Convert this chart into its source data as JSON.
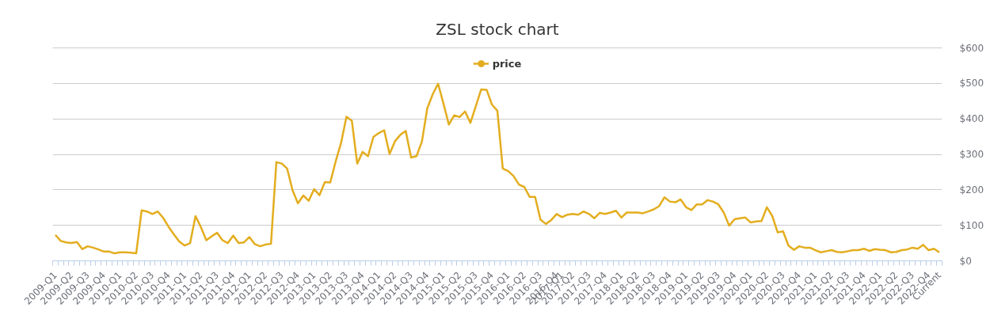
{
  "chart_data": {
    "type": "line",
    "title": "ZSL stock chart",
    "categories": [
      "2009-Q1",
      null,
      null,
      "2009-Q2",
      null,
      null,
      "2009-Q3",
      null,
      null,
      "2009-Q4",
      null,
      null,
      "2010-Q1",
      null,
      null,
      "2010-Q2",
      null,
      null,
      "2010-Q3",
      null,
      null,
      "2010-Q4",
      null,
      null,
      "2011-Q1",
      null,
      null,
      "2011-Q2",
      null,
      null,
      "2011-Q3",
      null,
      null,
      "2011-Q4",
      null,
      null,
      "2012-Q1",
      null,
      null,
      "2012-Q2",
      null,
      null,
      "2012-Q3",
      null,
      null,
      "2012-Q4",
      null,
      null,
      "2013-Q1",
      null,
      null,
      "2013-Q2",
      null,
      null,
      "2013-Q3",
      null,
      null,
      "2013-Q4",
      null,
      null,
      "2014-Q1",
      null,
      null,
      "2014-Q2",
      null,
      null,
      "2014-Q3",
      null,
      null,
      "2014-Q4",
      null,
      null,
      "2015-Q1",
      null,
      null,
      "2015-Q2",
      null,
      null,
      "2015-Q3",
      null,
      null,
      "2015-Q4",
      null,
      null,
      "2016-Q1",
      null,
      null,
      "2016-Q2",
      null,
      null,
      "2016-Q3",
      null,
      null,
      "2016-Q4",
      "2017-Q1",
      null,
      "2017-Q2",
      null,
      null,
      "2017-Q3",
      null,
      null,
      "2017-Q4",
      null,
      null,
      "2018-Q1",
      null,
      null,
      "2018-Q2",
      null,
      null,
      "2018-Q3",
      null,
      null,
      "2018-Q4",
      null,
      null,
      "2019-Q1",
      null,
      null,
      "2019-Q2",
      null,
      null,
      "2019-Q3",
      null,
      null,
      "2019-Q4",
      null,
      null,
      "2020-Q1",
      null,
      null,
      "2020-Q2",
      null,
      null,
      "2020-Q3",
      null,
      null,
      "2020-Q4",
      null,
      null,
      "2021-Q1",
      null,
      null,
      "2021-Q2",
      null,
      null,
      "2021-Q3",
      null,
      null,
      "2021-Q4",
      null,
      null,
      "2022-Q1",
      null,
      null,
      "2022-Q2",
      null,
      null,
      "2022-Q3",
      null,
      null,
      "2022-Q4",
      null,
      "Current"
    ],
    "series": [
      {
        "name": "price",
        "color": "#e3ad1f",
        "values": [
          73,
          56,
          52,
          50,
          53,
          33,
          41,
          37,
          32,
          26,
          26,
          21,
          24,
          24,
          23,
          21,
          142,
          139,
          132,
          139,
          121,
          96,
          74,
          54,
          43,
          50,
          126,
          95,
          58,
          69,
          79,
          58,
          50,
          71,
          50,
          52,
          67,
          47,
          41,
          46,
          48,
          278,
          274,
          260,
          199,
          162,
          184,
          169,
          202,
          185,
          222,
          221,
          280,
          332,
          406,
          395,
          274,
          307,
          295,
          349,
          360,
          368,
          301,
          337,
          355,
          366,
          291,
          295,
          336,
          430,
          469,
          499,
          443,
          384,
          410,
          405,
          421,
          389,
          436,
          483,
          482,
          440,
          423,
          260,
          253,
          239,
          215,
          208,
          180,
          180,
          116,
          104,
          115,
          132,
          123,
          130,
          132,
          130,
          139,
          132,
          120,
          135,
          132,
          136,
          141,
          122,
          136,
          136,
          136,
          134,
          139,
          145,
          154,
          179,
          167,
          165,
          173,
          151,
          143,
          159,
          159,
          171,
          167,
          159,
          136,
          99,
          117,
          120,
          122,
          108,
          111,
          112,
          151,
          126,
          80,
          83,
          43,
          31,
          41,
          37,
          37,
          30,
          24,
          27,
          30,
          25,
          24,
          27,
          30,
          30,
          34,
          28,
          33,
          31,
          30,
          24,
          25,
          30,
          32,
          37,
          34,
          45,
          30,
          34,
          24
        ]
      }
    ],
    "ylim": [
      0,
      600
    ],
    "yticks": [
      {
        "value": 0,
        "label": "$0"
      },
      {
        "value": 100,
        "label": "$100"
      },
      {
        "value": 200,
        "label": "$200"
      },
      {
        "value": 300,
        "label": "$300"
      },
      {
        "value": 400,
        "label": "$400"
      },
      {
        "value": 500,
        "label": "$500"
      },
      {
        "value": 600,
        "label": "$600"
      }
    ],
    "grid": "y",
    "legend": "top"
  }
}
